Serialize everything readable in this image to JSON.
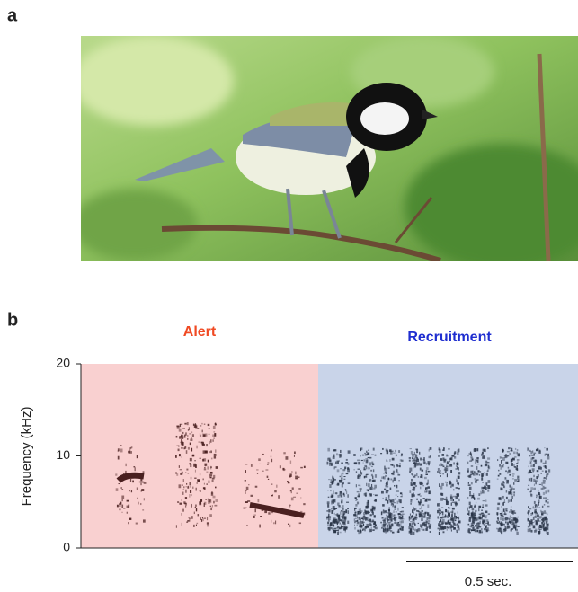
{
  "panel_a": {
    "label": "a"
  },
  "panel_b": {
    "label": "b",
    "y_label": "Frequency (kHz)",
    "ylim": [
      0,
      20
    ],
    "yticks": [
      0,
      10,
      20
    ],
    "segments": [
      "Alert",
      "Recruitment"
    ],
    "scale_bar": "0.5 sec."
  }
}
